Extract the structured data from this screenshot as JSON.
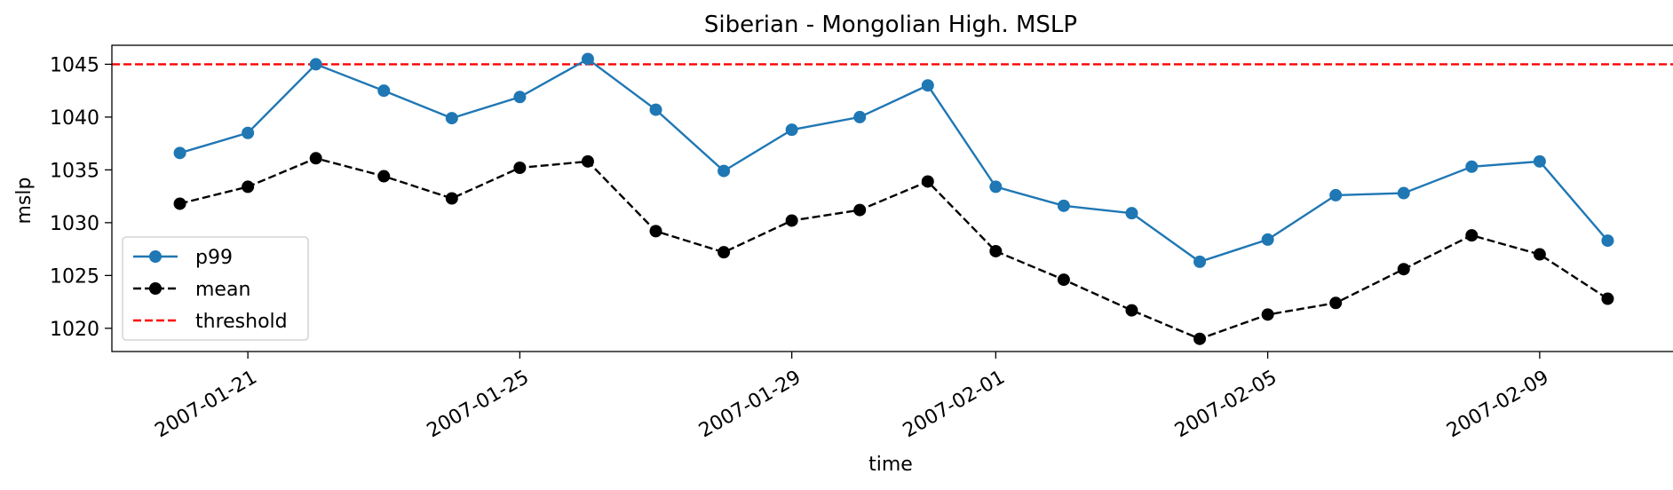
{
  "chart_data": {
    "type": "line",
    "title": "Siberian - Mongolian High. MSLP",
    "xlabel": "time",
    "ylabel": "mslp",
    "x": [
      "2007-01-20",
      "2007-01-21",
      "2007-01-22",
      "2007-01-23",
      "2007-01-24",
      "2007-01-25",
      "2007-01-26",
      "2007-01-27",
      "2007-01-28",
      "2007-01-29",
      "2007-01-30",
      "2007-01-31",
      "2007-02-01",
      "2007-02-02",
      "2007-02-03",
      "2007-02-04",
      "2007-02-05",
      "2007-02-06",
      "2007-02-07",
      "2007-02-08",
      "2007-02-09",
      "2007-02-10"
    ],
    "x_tick_labels": [
      "2007-01-21",
      "2007-01-25",
      "2007-01-29",
      "2007-02-01",
      "2007-02-05",
      "2007-02-09"
    ],
    "xlim": [
      "2007-01-19",
      "2007-02-11"
    ],
    "ylim": [
      1017.8,
      1046.8
    ],
    "y_ticks": [
      1020,
      1025,
      1030,
      1035,
      1040,
      1045
    ],
    "grid": false,
    "legend_position": "lower-left",
    "series": [
      {
        "name": "p99",
        "color": "#1f77b4",
        "line_style": "solid",
        "marker": "circle",
        "values": [
          1036.6,
          1038.5,
          1045.0,
          1042.5,
          1039.9,
          1041.9,
          1045.5,
          1040.7,
          1034.9,
          1038.8,
          1040.0,
          1043.0,
          1033.4,
          1031.6,
          1030.9,
          1026.3,
          1028.4,
          1032.6,
          1032.8,
          1035.3,
          1035.8,
          1028.3
        ]
      },
      {
        "name": "mean",
        "color": "#000000",
        "line_style": "dashed",
        "marker": "circle",
        "values": [
          1031.8,
          1033.4,
          1036.1,
          1034.4,
          1032.3,
          1035.2,
          1035.8,
          1029.2,
          1027.2,
          1030.2,
          1031.2,
          1033.9,
          1027.3,
          1024.6,
          1021.7,
          1019.0,
          1021.3,
          1022.4,
          1025.6,
          1028.8,
          1027.0,
          1022.8
        ]
      }
    ],
    "reference_lines": [
      {
        "name": "threshold",
        "y": 1045,
        "color": "#ff0000",
        "line_style": "dashed"
      }
    ]
  }
}
